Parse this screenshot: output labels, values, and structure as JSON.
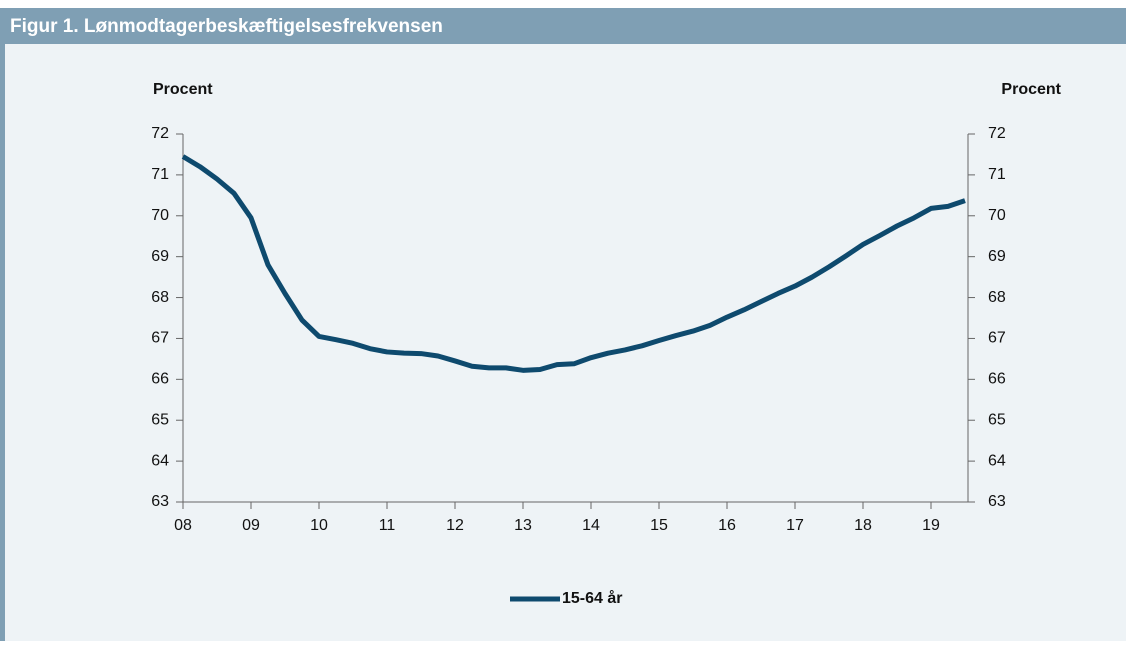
{
  "chart_data": {
    "type": "line",
    "title": "Figur 1. Lønmodtagerbeskæftigelsesfrekvensen",
    "y_label": "Procent",
    "y2_label": "Procent",
    "categories": [
      "08",
      null,
      null,
      null,
      "09",
      null,
      null,
      null,
      "10",
      null,
      null,
      null,
      "11",
      null,
      null,
      null,
      "12",
      null,
      null,
      null,
      "13",
      null,
      null,
      null,
      "14",
      null,
      null,
      null,
      "15",
      null,
      null,
      null,
      "16",
      null,
      null,
      null,
      "17",
      null,
      null,
      null,
      "18",
      null,
      null,
      null,
      "19",
      null,
      null
    ],
    "series": [
      {
        "name": "15-64 år",
        "color": "#0e4a6e",
        "values": [
          71.45,
          71.2,
          70.9,
          70.55,
          69.95,
          68.8,
          68.1,
          67.45,
          67.05,
          66.97,
          66.88,
          66.75,
          66.67,
          66.64,
          66.63,
          66.57,
          66.45,
          66.32,
          66.28,
          66.28,
          66.22,
          66.24,
          66.36,
          66.38,
          66.53,
          66.64,
          66.72,
          66.82,
          66.95,
          67.07,
          67.18,
          67.32,
          67.52,
          67.7,
          67.9,
          68.1,
          68.28,
          68.5,
          68.75,
          69.02,
          69.3,
          69.52,
          69.75,
          69.95,
          70.18,
          70.23,
          70.37
        ]
      }
    ],
    "ylim": [
      63,
      72
    ],
    "yticks": [
      63,
      64,
      65,
      66,
      67,
      68,
      69,
      70,
      71,
      72
    ],
    "y2lim": [
      63,
      72
    ],
    "y2ticks": [
      63,
      64,
      65,
      66,
      67,
      68,
      69,
      70,
      71,
      72
    ],
    "grid": false
  }
}
